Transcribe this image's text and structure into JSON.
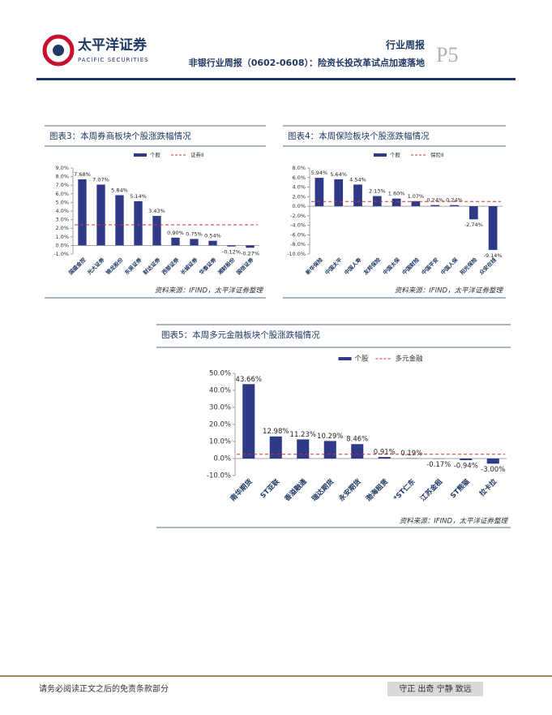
{
  "header": {
    "logo_cn": "太平洋证券",
    "logo_en": "PACIFIC SECURITIES",
    "section": "行业周报",
    "report_title": "非银行业周报（0602-0608）：险资长投改革试点加速落地",
    "page": "P5"
  },
  "chart_data": [
    {
      "type": "bar",
      "title": "图表3：本周券商板块个股涨跌幅情况",
      "source": "资料来源：IFIND，太平洋证券整理",
      "categories": [
        "国盛金控",
        "光大证券",
        "锦龙股份",
        "东吴证券",
        "财达证券",
        "西部证券",
        "长城证券",
        "华泰证券",
        "湘财股份",
        "国信证券"
      ],
      "series": [
        {
          "name": "个股",
          "color": "#2e3a87",
          "values": [
            7.68,
            7.07,
            5.84,
            5.14,
            3.43,
            0.9,
            0.75,
            0.54,
            -0.12,
            -0.27
          ],
          "value_labels": [
            "7.68%",
            "7.07%",
            "5.84%",
            "5.14%",
            "3.43%",
            "0.90%",
            "0.75%",
            "0.54%",
            "-0.12%",
            "-0.27%"
          ]
        }
      ],
      "reference": {
        "name": "证券Ⅱ",
        "value": 2.4,
        "color": "#d0312d"
      },
      "ylim": [
        -1,
        9
      ],
      "yticks": [
        {
          "value": -1,
          "label": "-1.0%"
        },
        {
          "value": 0,
          "label": "0.0%"
        },
        {
          "value": 1,
          "label": "1.0%"
        },
        {
          "value": 2,
          "label": "2.0%"
        },
        {
          "value": 3,
          "label": "3.0%"
        },
        {
          "value": 4,
          "label": "4.0%"
        },
        {
          "value": 5,
          "label": "5.0%"
        },
        {
          "value": 6,
          "label": "6.0%"
        },
        {
          "value": 7,
          "label": "7.0%"
        },
        {
          "value": 8,
          "label": "8.0%"
        },
        {
          "value": 9,
          "label": "9.0%"
        }
      ]
    },
    {
      "type": "bar",
      "title": "图表4：本周保险板块个股涨跌幅情况",
      "source": "资料来源：IFIND，太平洋证券整理",
      "categories": [
        "新华保险",
        "中国太平",
        "中国人寿",
        "友邦保险",
        "中国太保",
        "中国财险",
        "中国平安",
        "中国人保",
        "阳光保险",
        "众安在线"
      ],
      "series": [
        {
          "name": "个股",
          "color": "#2e3a87",
          "values": [
            5.94,
            5.64,
            4.54,
            2.13,
            1.6,
            1.07,
            0.24,
            0.24,
            -2.74,
            -9.14
          ],
          "value_labels": [
            "5.94%",
            "5.64%",
            "4.54%",
            "2.13%",
            "1.60%",
            "1.07%",
            "0.24%",
            "0.24%",
            "-2.74%",
            "-9.14%"
          ]
        }
      ],
      "reference": {
        "name": "保险Ⅱ",
        "value": 1.0,
        "color": "#d0312d"
      },
      "ylim": [
        -10,
        8
      ],
      "yticks": [
        {
          "value": -10,
          "label": "-10.0%"
        },
        {
          "value": -8,
          "label": "-8.0%"
        },
        {
          "value": -6,
          "label": "-6.0%"
        },
        {
          "value": -4,
          "label": "-4.0%"
        },
        {
          "value": -2,
          "label": "-2.0%"
        },
        {
          "value": 0,
          "label": "0.0%"
        },
        {
          "value": 2,
          "label": "2.0%"
        },
        {
          "value": 4,
          "label": "4.0%"
        },
        {
          "value": 6,
          "label": "6.0%"
        },
        {
          "value": 8,
          "label": "8.0%"
        }
      ]
    },
    {
      "type": "bar",
      "title": "图表5：本周多元金融板块个股涨跌幅情况",
      "source": "资料来源：IFIND，太平洋证券整理",
      "categories": [
        "南华期货",
        "ST亚联",
        "香溢融通",
        "瑞达期货",
        "永安期货",
        "渤海租赁",
        "*ST仁东",
        "江苏金租",
        "ST熊猫",
        "拉卡拉"
      ],
      "series": [
        {
          "name": "个股",
          "color": "#2e3a87",
          "values": [
            43.66,
            12.98,
            11.23,
            10.29,
            8.46,
            0.91,
            0.19,
            -0.17,
            -0.94,
            -3.0
          ],
          "value_labels": [
            "43.66%",
            "12.98%",
            "11.23%",
            "10.29%",
            "8.46%",
            "0.91%",
            "0.19%",
            "-0.17%",
            "-0.94%",
            "-3.00%"
          ]
        }
      ],
      "reference": {
        "name": "多元金融",
        "value": 2.5,
        "color": "#d0312d"
      },
      "ylim": [
        -10,
        50
      ],
      "yticks": [
        {
          "value": -10,
          "label": "-10.0%"
        },
        {
          "value": 0,
          "label": "0.0%"
        },
        {
          "value": 10,
          "label": "10.0%"
        },
        {
          "value": 20,
          "label": "20.0%"
        },
        {
          "value": 30,
          "label": "30.0%"
        },
        {
          "value": 40,
          "label": "40.0%"
        },
        {
          "value": 50,
          "label": "50.0%"
        }
      ]
    }
  ],
  "footer": {
    "disclaimer": "请务必阅读正文之后的免责条款部分",
    "motto": "守正 出奇 宁静 致远"
  }
}
